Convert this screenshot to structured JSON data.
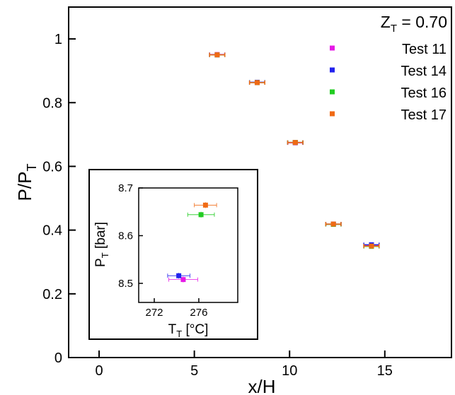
{
  "chart_data": [
    {
      "type": "scatter",
      "annotation": {
        "base": "Z",
        "sub": "T",
        "rest": " = 0.70"
      },
      "xlabel": "x/H",
      "ylabel": {
        "base": "P/P",
        "sub": "T"
      },
      "xlim": [
        -1.6,
        18.5
      ],
      "ylim": [
        0,
        1.1
      ],
      "xticks": [
        0,
        5,
        10,
        15
      ],
      "yticks": [
        0,
        0.2,
        0.4,
        0.6,
        0.8,
        1
      ],
      "ytick_labels": [
        "0",
        "0.2",
        "0.4",
        "0.6",
        "0.8",
        "1"
      ],
      "legend_position": "top-right",
      "series": [
        {
          "name": "Test 11",
          "color": "#e619e6",
          "points": [
            {
              "x": 6.2,
              "y": 0.951
            },
            {
              "x": 8.3,
              "y": 0.863
            },
            {
              "x": 10.3,
              "y": 0.674
            },
            {
              "x": 12.3,
              "y": 0.418
            },
            {
              "x": 14.3,
              "y": 0.351
            }
          ]
        },
        {
          "name": "Test 14",
          "color": "#2222ee",
          "points": [
            {
              "x": 6.2,
              "y": 0.95
            },
            {
              "x": 8.3,
              "y": 0.864
            },
            {
              "x": 10.3,
              "y": 0.675
            },
            {
              "x": 12.3,
              "y": 0.419
            },
            {
              "x": 14.3,
              "y": 0.354
            }
          ]
        },
        {
          "name": "Test 16",
          "color": "#22cc22",
          "points": [
            {
              "x": 6.2,
              "y": 0.95
            },
            {
              "x": 8.3,
              "y": 0.863
            },
            {
              "x": 10.3,
              "y": 0.675
            },
            {
              "x": 12.3,
              "y": 0.418
            },
            {
              "x": 14.3,
              "y": 0.349
            }
          ]
        },
        {
          "name": "Test 17",
          "color": "#f06a14",
          "points": [
            {
              "x": 6.2,
              "y": 0.95
            },
            {
              "x": 8.3,
              "y": 0.863
            },
            {
              "x": 10.3,
              "y": 0.675
            },
            {
              "x": 12.3,
              "y": 0.419
            },
            {
              "x": 14.3,
              "y": 0.35
            }
          ]
        }
      ],
      "x_error": 0.4,
      "y_error": 0.004
    },
    {
      "type": "scatter",
      "inset": true,
      "xlabel": {
        "base": "T",
        "sub": "T",
        "rest": " [°C]"
      },
      "ylabel": {
        "base": "P",
        "sub": "T",
        "rest": " [bar]"
      },
      "xlim": [
        270.6,
        279.5
      ],
      "ylim": [
        8.46,
        8.7
      ],
      "xticks": [
        272,
        276
      ],
      "yticks": [
        8.5,
        8.6,
        8.7
      ],
      "ytick_labels": [
        "8.5",
        "8.6",
        "8.7"
      ],
      "series": [
        {
          "name": "Test 11",
          "color": "#e619e6",
          "points": [
            {
              "x": 274.6,
              "y": 8.508,
              "xerr": 1.3,
              "yerr": 0.006
            }
          ]
        },
        {
          "name": "Test 14",
          "color": "#2222ee",
          "points": [
            {
              "x": 274.2,
              "y": 8.516,
              "xerr": 1.0,
              "yerr": 0.006
            }
          ]
        },
        {
          "name": "Test 16",
          "color": "#22cc22",
          "points": [
            {
              "x": 276.2,
              "y": 8.644,
              "xerr": 1.2,
              "yerr": 0.006
            }
          ]
        },
        {
          "name": "Test 17",
          "color": "#f06a14",
          "points": [
            {
              "x": 276.6,
              "y": 8.664,
              "xerr": 1.0,
              "yerr": 0.006
            }
          ]
        }
      ]
    }
  ]
}
